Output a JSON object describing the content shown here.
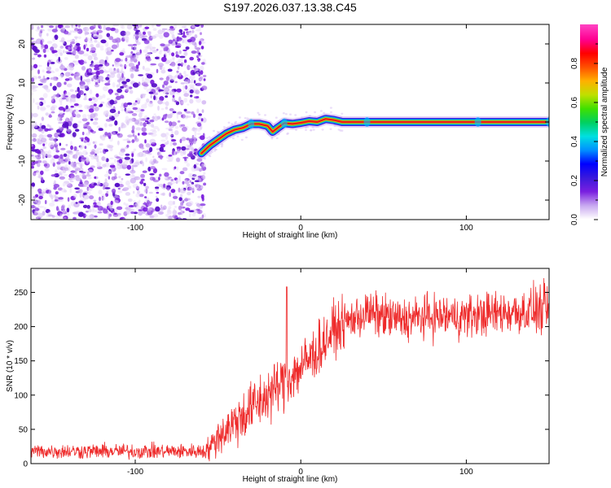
{
  "figure": {
    "title": "S197.2026.037.13.38.C45"
  },
  "chart_data": [
    {
      "type": "heatmap",
      "name": "spectrogram",
      "xlabel": "Height of straight line (km)",
      "ylabel": "Frequency (Hz)",
      "xlim": [
        -163,
        150
      ],
      "ylim": [
        -25,
        25
      ],
      "xticks": [
        -100,
        0,
        100
      ],
      "xtick_labels": [
        "-100",
        "0",
        "100"
      ],
      "yticks": [
        -20,
        -10,
        0,
        10,
        20
      ],
      "ytick_labels": [
        "-20",
        "-10",
        "0",
        "10",
        "20"
      ],
      "noise_region_x": [
        -163,
        -60
      ],
      "track_points": [
        {
          "x": -60,
          "y": -8
        },
        {
          "x": -55,
          "y": -6
        },
        {
          "x": -50,
          "y": -4.5
        },
        {
          "x": -45,
          "y": -3
        },
        {
          "x": -40,
          "y": -2
        },
        {
          "x": -35,
          "y": -1.5
        },
        {
          "x": -30,
          "y": -0.5
        },
        {
          "x": -25,
          "y": -0.5
        },
        {
          "x": -20,
          "y": -1
        },
        {
          "x": -17,
          "y": -2.5
        },
        {
          "x": -14,
          "y": -1.5
        },
        {
          "x": -10,
          "y": -0.3
        },
        {
          "x": -5,
          "y": -0.5
        },
        {
          "x": 0,
          "y": -0.2
        },
        {
          "x": 5,
          "y": 0.2
        },
        {
          "x": 10,
          "y": 0
        },
        {
          "x": 15,
          "y": 0.8
        },
        {
          "x": 20,
          "y": 0.5
        },
        {
          "x": 25,
          "y": 0
        },
        {
          "x": 50,
          "y": 0
        },
        {
          "x": 100,
          "y": 0
        },
        {
          "x": 150,
          "y": 0
        }
      ],
      "colorbar": {
        "label": "Normalized spectral amplitude",
        "range": [
          0,
          1
        ],
        "ticks": [
          0.0,
          0.2,
          0.4,
          0.6,
          0.8
        ],
        "tick_labels": [
          "0.0",
          "0.2",
          "0.4",
          "0.6",
          "0.8"
        ],
        "colors": [
          "#ffffff",
          "#c8a8f0",
          "#7a20e0",
          "#3a1adc",
          "#0000ff",
          "#0090ff",
          "#00e0e0",
          "#00d060",
          "#40e000",
          "#c0e000",
          "#ffb000",
          "#ff5000",
          "#ff0000",
          "#ff0090",
          "#ff40c0"
        ]
      }
    },
    {
      "type": "line",
      "name": "snr",
      "xlabel": "Height of straight line (km)",
      "ylabel": "SNR (10 * v/v)",
      "xlim": [
        -163,
        150
      ],
      "ylim": [
        0,
        285
      ],
      "xticks": [
        -100,
        0,
        100
      ],
      "xtick_labels": [
        "-100",
        "0",
        "100"
      ],
      "yticks": [
        0,
        50,
        100,
        150,
        200,
        250
      ],
      "ytick_labels": [
        "0",
        "50",
        "100",
        "150",
        "200",
        "250"
      ],
      "series": [
        {
          "name": "SNR",
          "color": "#ee2a2a",
          "trend_x": [
            -163,
            -60,
            -55,
            -50,
            -40,
            -30,
            -20,
            -10,
            0,
            10,
            20,
            30,
            40,
            60,
            80,
            100,
            120,
            150
          ],
          "trend_y": [
            18,
            18,
            22,
            40,
            60,
            80,
            100,
            120,
            140,
            165,
            195,
            210,
            220,
            210,
            215,
            215,
            220,
            225
          ],
          "noise_amplitude": [
            12,
            12,
            20,
            30,
            40,
            45,
            45,
            45,
            45,
            45,
            40,
            35,
            35,
            35,
            35,
            35,
            35,
            40
          ],
          "spike": {
            "x": -8.5,
            "y": 258
          }
        }
      ]
    }
  ]
}
